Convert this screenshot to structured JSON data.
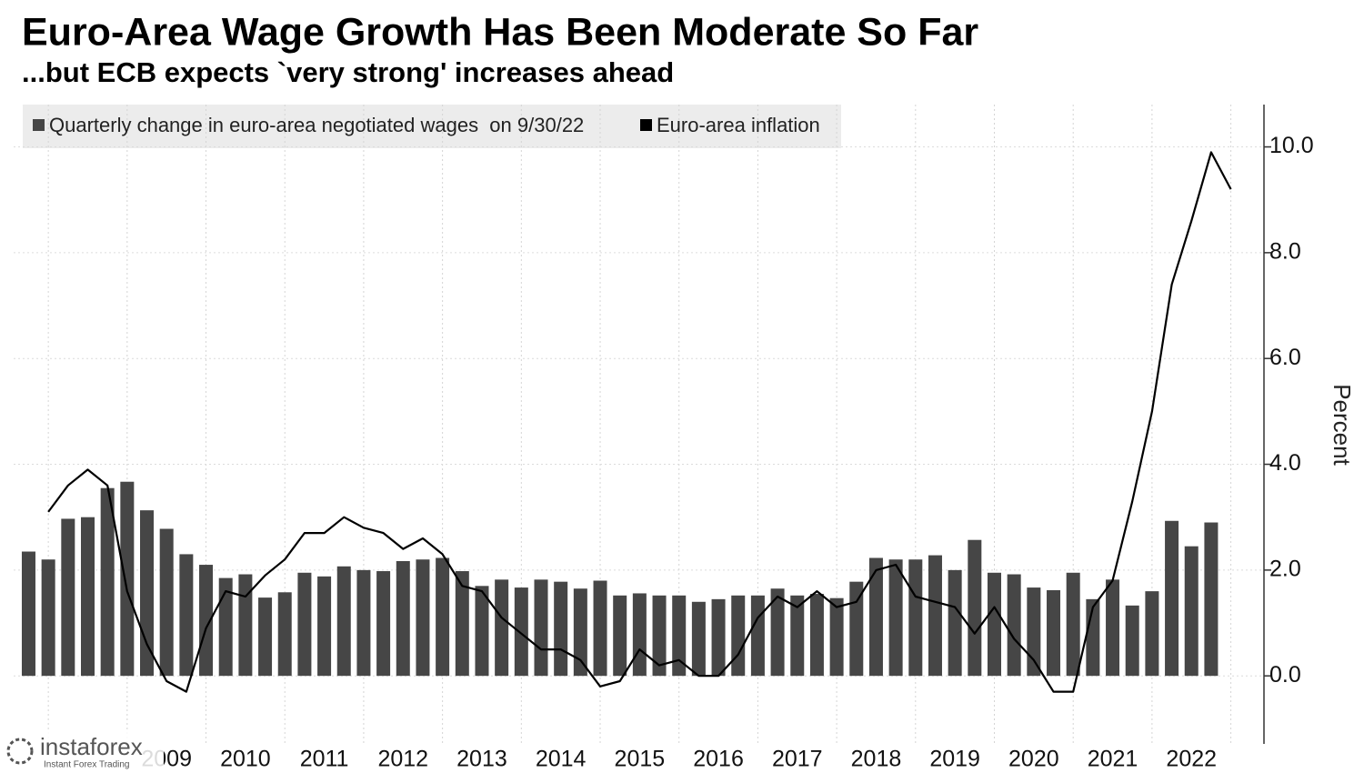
{
  "chart_data": {
    "type": "bar-line",
    "title": "Euro-Area Wage Growth Has Been Moderate So Far",
    "subtitle": "...but ECB expects `very strong' increases ahead",
    "y_label": "Percent",
    "watermark": [
      "instaforex",
      "Instant Forex Trading"
    ],
    "xlim": [
      2007.56,
      2023.42
    ],
    "xticks": [
      {
        "value": 2009.5,
        "label": "2009"
      },
      {
        "value": 2010.5,
        "label": "2010"
      },
      {
        "value": 2011.5,
        "label": "2011"
      },
      {
        "value": 2012.5,
        "label": "2012"
      },
      {
        "value": 2013.5,
        "label": "2013"
      },
      {
        "value": 2014.5,
        "label": "2014"
      },
      {
        "value": 2015.5,
        "label": "2015"
      },
      {
        "value": 2016.5,
        "label": "2016"
      },
      {
        "value": 2017.5,
        "label": "2017"
      },
      {
        "value": 2018.5,
        "label": "2018"
      },
      {
        "value": 2019.5,
        "label": "2019"
      },
      {
        "value": 2020.5,
        "label": "2020"
      },
      {
        "value": 2021.5,
        "label": "2021"
      },
      {
        "value": 2022.5,
        "label": "2022"
      }
    ],
    "ylim": [
      -1.2,
      10.8
    ],
    "yticks": [
      {
        "value": 0,
        "label": "0.0"
      },
      {
        "value": 2,
        "label": "2.0"
      },
      {
        "value": 4,
        "label": "4.0"
      },
      {
        "value": 6,
        "label": "6.0"
      },
      {
        "value": 8,
        "label": "8.0"
      },
      {
        "value": 10,
        "label": "10.0"
      }
    ],
    "grid": true,
    "series": [
      {
        "name": "Quarterly change in euro-area negotiated wages  on 9/30/22",
        "type": "bar",
        "color": "#464646",
        "x": [
          2007.75,
          2008,
          2008.25,
          2008.5,
          2008.75,
          2009,
          2009.25,
          2009.5,
          2009.75,
          2010,
          2010.25,
          2010.5,
          2010.75,
          2011,
          2011.25,
          2011.5,
          2011.75,
          2012,
          2012.25,
          2012.5,
          2012.75,
          2013,
          2013.25,
          2013.5,
          2013.75,
          2014,
          2014.25,
          2014.5,
          2014.75,
          2015,
          2015.25,
          2015.5,
          2015.75,
          2016,
          2016.25,
          2016.5,
          2016.75,
          2017,
          2017.25,
          2017.5,
          2017.75,
          2018,
          2018.25,
          2018.5,
          2018.75,
          2019,
          2019.25,
          2019.5,
          2019.75,
          2020,
          2020.25,
          2020.5,
          2020.75,
          2021,
          2021.25,
          2021.5,
          2021.75,
          2022,
          2022.25,
          2022.5,
          2022.75
        ],
        "values": [
          2.35,
          2.2,
          2.97,
          3.0,
          3.55,
          3.67,
          3.13,
          2.78,
          2.3,
          2.1,
          1.85,
          1.92,
          1.48,
          1.58,
          1.95,
          1.88,
          2.07,
          2.0,
          1.98,
          2.17,
          2.2,
          2.23,
          1.98,
          1.7,
          1.82,
          1.67,
          1.82,
          1.78,
          1.65,
          1.8,
          1.52,
          1.56,
          1.52,
          1.52,
          1.4,
          1.45,
          1.52,
          1.52,
          1.65,
          1.52,
          1.55,
          1.47,
          1.78,
          2.23,
          2.2,
          2.2,
          2.28,
          2.0,
          2.57,
          1.95,
          1.92,
          1.67,
          1.62,
          1.95,
          1.45,
          1.82,
          1.33,
          1.6,
          2.93,
          2.45,
          2.9
        ]
      },
      {
        "name": "Euro-area inflation",
        "type": "line",
        "color": "#000000",
        "x": [
          2008,
          2008.25,
          2008.5,
          2008.75,
          2009,
          2009.25,
          2009.5,
          2009.75,
          2010,
          2010.25,
          2010.5,
          2010.75,
          2011,
          2011.25,
          2011.5,
          2011.75,
          2012,
          2012.25,
          2012.5,
          2012.75,
          2013,
          2013.25,
          2013.5,
          2013.75,
          2014,
          2014.25,
          2014.5,
          2014.75,
          2015,
          2015.25,
          2015.5,
          2015.75,
          2016,
          2016.25,
          2016.5,
          2016.75,
          2017,
          2017.25,
          2017.5,
          2017.75,
          2018,
          2018.25,
          2018.5,
          2018.75,
          2019,
          2019.25,
          2019.5,
          2019.75,
          2020,
          2020.25,
          2020.5,
          2020.75,
          2021,
          2021.25,
          2021.5,
          2021.75,
          2022,
          2022.25,
          2022.5,
          2022.75,
          2023
        ],
        "values": [
          3.1,
          3.6,
          3.9,
          3.6,
          1.6,
          0.6,
          -0.1,
          -0.3,
          0.9,
          1.6,
          1.5,
          1.9,
          2.2,
          2.7,
          2.7,
          3.0,
          2.8,
          2.7,
          2.4,
          2.6,
          2.3,
          1.7,
          1.6,
          1.1,
          0.8,
          0.5,
          0.5,
          0.3,
          -0.2,
          -0.1,
          0.5,
          0.2,
          0.3,
          0.0,
          0.0,
          0.4,
          1.1,
          1.5,
          1.3,
          1.6,
          1.3,
          1.4,
          2.0,
          2.1,
          1.5,
          1.4,
          1.3,
          0.8,
          1.3,
          0.7,
          0.3,
          -0.3,
          -0.3,
          1.3,
          1.8,
          3.3,
          5.0,
          7.4,
          8.6,
          9.9,
          9.2
        ]
      }
    ]
  }
}
